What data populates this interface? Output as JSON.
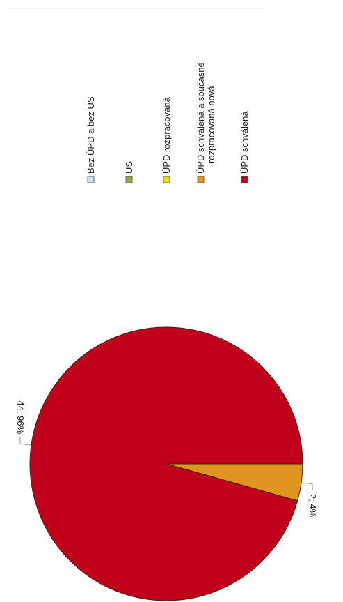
{
  "chart_data": {
    "type": "pie",
    "title": "",
    "orientation": "rotated-90-clockwise",
    "slices": [
      {
        "label": "Bez ÚPD a bez US",
        "value": 0,
        "color": "#c8e6ef"
      },
      {
        "label": "US",
        "value": 0,
        "color": "#8cb43c"
      },
      {
        "label": "ÚPD rozpracovaná",
        "value": 0,
        "color": "#f2e000"
      },
      {
        "label": "ÚPD schválená a současně rozpracovaná nová",
        "value": 2,
        "percent": 4,
        "data_label": "2; 4%",
        "color": "#e0951e"
      },
      {
        "label": "ÚPD schválená",
        "value": 44,
        "percent": 96,
        "data_label": "44; 96%",
        "color": "#c0001a"
      }
    ],
    "legend": {
      "position": "right",
      "entries": [
        {
          "lines": [
            "Bez ÚPD a bez US"
          ],
          "color": "#c8e6ef"
        },
        {
          "lines": [
            "US"
          ],
          "color": "#8cb43c"
        },
        {
          "lines": [
            "ÚPD rozpracovaná"
          ],
          "color": "#f2e000"
        },
        {
          "lines": [
            "ÚPD schválená a současně",
            "rozpracovaná nová"
          ],
          "color": "#e0951e"
        },
        {
          "lines": [
            "ÚPD schválená"
          ],
          "color": "#c0001a"
        }
      ]
    }
  }
}
